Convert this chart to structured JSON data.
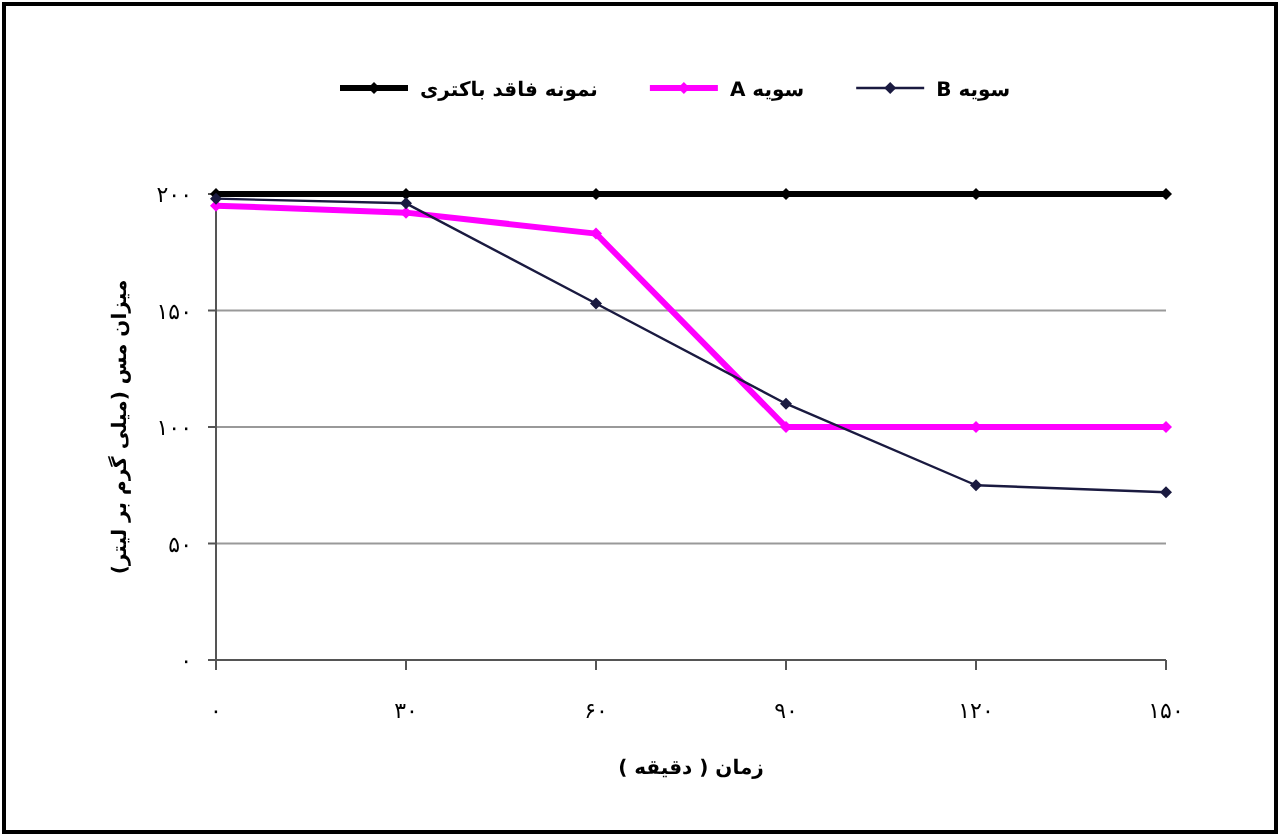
{
  "chart_data": {
    "type": "line",
    "xlabel": "زمان ( دقیقه )",
    "ylabel": "میزان مس (میلی گرم بر لیتر)",
    "x": [
      0,
      30,
      60,
      90,
      120,
      150
    ],
    "series": [
      {
        "name": "نمونه فاقد باکتری",
        "color": "#000000",
        "values": [
          200,
          200,
          200,
          200,
          200,
          200
        ]
      },
      {
        "name": "سویه A",
        "color": "#ff00ff",
        "values": [
          195,
          192,
          183,
          100,
          100,
          100
        ]
      },
      {
        "name": "سویه B",
        "color": "#1a1a40",
        "values": [
          198,
          196,
          153,
          110,
          75,
          72
        ]
      }
    ],
    "xlim": [
      0,
      150
    ],
    "ylim": [
      0,
      200
    ],
    "xticks": [
      {
        "value": 0,
        "label": "۰"
      },
      {
        "value": 30,
        "label": "۳۰"
      },
      {
        "value": 60,
        "label": "۶۰"
      },
      {
        "value": 90,
        "label": "۹۰"
      },
      {
        "value": 120,
        "label": "۱۲۰"
      },
      {
        "value": 150,
        "label": "۱۵۰"
      }
    ],
    "yticks": [
      {
        "value": 0,
        "label": "۰"
      },
      {
        "value": 50,
        "label": "۵۰"
      },
      {
        "value": 100,
        "label": "۱۰۰"
      },
      {
        "value": 150,
        "label": "۱۵۰"
      },
      {
        "value": 200,
        "label": "۲۰۰"
      }
    ],
    "grid": "y",
    "legend": "top",
    "marker": "diamond",
    "line_style": "solid"
  }
}
